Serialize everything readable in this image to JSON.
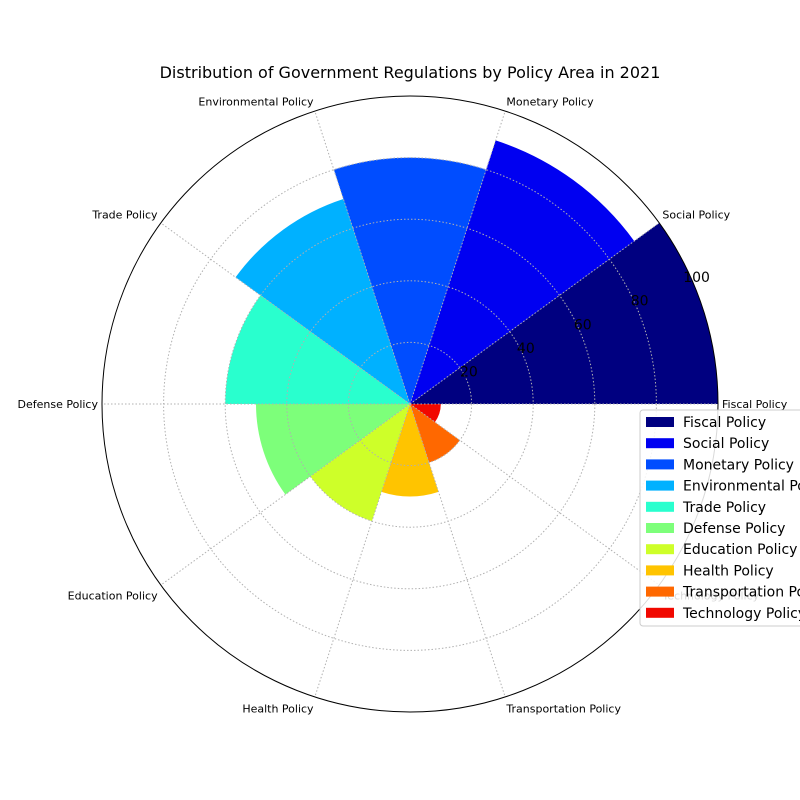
{
  "chart_data": {
    "type": "bar",
    "projection": "polar",
    "title": "Distribution of Government Regulations by Policy Area in 2021",
    "categories": [
      "Fiscal Policy",
      "Social Policy",
      "Monetary Policy",
      "Environmental Policy",
      "Trade Policy",
      "Defense Policy",
      "Education Policy",
      "Health Policy",
      "Transportation Policy",
      "Technology Policy"
    ],
    "values": [
      100,
      90,
      80,
      70,
      60,
      50,
      40,
      30,
      20,
      10
    ],
    "colors": [
      "#000080",
      "#0000f1",
      "#004dff",
      "#00b1ff",
      "#29ffce",
      "#7dff7a",
      "#ceff29",
      "#ffc400",
      "#ff6800",
      "#f10800"
    ],
    "rlim": [
      0,
      100
    ],
    "rticks": [
      20,
      40,
      60,
      80,
      100
    ],
    "rtick_labels": [
      "20",
      "40",
      "60",
      "80",
      "100"
    ],
    "grid": true,
    "legend_position": "right",
    "legend": [
      "Fiscal Policy",
      "Social Policy",
      "Monetary Policy",
      "Environmental Policy",
      "Trade Policy",
      "Defense Policy",
      "Education Policy",
      "Health Policy",
      "Transportation Policy",
      "Technology Policy"
    ]
  }
}
